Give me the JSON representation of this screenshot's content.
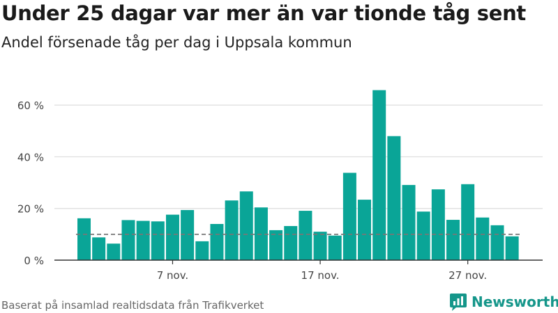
{
  "header": {
    "title": "Under 25 dagar var mer än var tionde tåg sent",
    "subtitle": "Andel försenade tåg per dag i Uppsala kommun"
  },
  "footer": {
    "source": "Baserat på insamlad realtidsdata från Trafikverket",
    "brand": "Newsworthy"
  },
  "colors": {
    "bar": "#0aa597",
    "brand": "#15968a",
    "grid": "#dddddd",
    "reference_line": "#777777"
  },
  "chart_data": {
    "type": "bar",
    "categories": [
      "1 nov.",
      "2 nov.",
      "3 nov.",
      "4 nov.",
      "5 nov.",
      "6 nov.",
      "7 nov.",
      "8 nov.",
      "9 nov.",
      "10 nov.",
      "11 nov.",
      "12 nov.",
      "13 nov.",
      "14 nov.",
      "15 nov.",
      "16 nov.",
      "17 nov.",
      "18 nov.",
      "19 nov.",
      "20 nov.",
      "21 nov.",
      "22 nov.",
      "23 nov.",
      "24 nov.",
      "25 nov.",
      "26 nov.",
      "27 nov.",
      "28 nov.",
      "29 nov.",
      "30 nov."
    ],
    "values": [
      16.2,
      8.8,
      6.4,
      15.5,
      15.2,
      15.0,
      17.6,
      19.4,
      7.3,
      14.0,
      23.1,
      26.6,
      20.4,
      11.6,
      13.2,
      19.1,
      11.0,
      9.5,
      33.8,
      23.4,
      65.8,
      48.0,
      29.1,
      18.8,
      27.4,
      15.6,
      29.4,
      16.5,
      13.5,
      9.2
    ],
    "reference_line": 10,
    "ylim": [
      0,
      70
    ],
    "y_ticks": [
      {
        "value": 0,
        "label": "0 %"
      },
      {
        "value": 20,
        "label": "20 %"
      },
      {
        "value": 40,
        "label": "40 %"
      },
      {
        "value": 60,
        "label": "60 %"
      }
    ],
    "x_ticks": [
      {
        "index": 6,
        "label": "7 nov."
      },
      {
        "index": 16,
        "label": "17 nov."
      },
      {
        "index": 26,
        "label": "27 nov."
      }
    ],
    "grid": true,
    "legend": "none"
  }
}
